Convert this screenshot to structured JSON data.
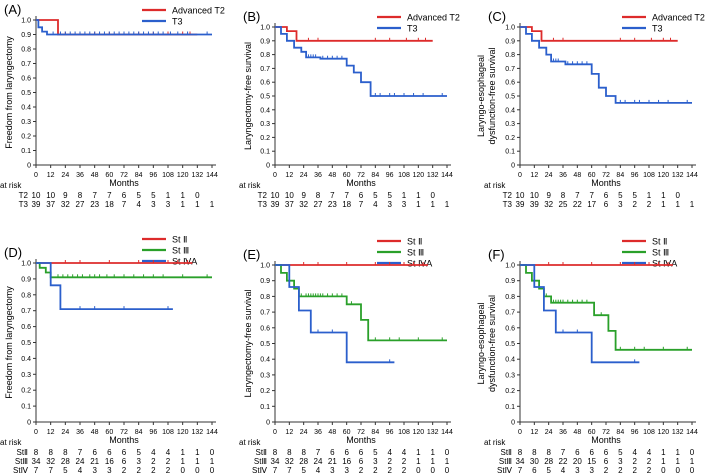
{
  "chart_data": [
    {
      "panel": "(A)",
      "type": "line",
      "title": "",
      "xlabel": "Months",
      "ylabel": "Freedom from laryngectomy",
      "xlim": [
        0,
        144
      ],
      "ylim": [
        0,
        1.0
      ],
      "x_ticks": [
        "0",
        "12",
        "24",
        "36",
        "48",
        "60",
        "72",
        "84",
        "96",
        "108",
        "120",
        "132",
        "144"
      ],
      "y_ticks": [
        "0",
        "0.1",
        "0.2",
        "0.3",
        "0.4",
        "0.5",
        "0.6",
        "0.7",
        "0.8",
        "0.9",
        "1.0"
      ],
      "legend": "top-right",
      "series": [
        {
          "name": "Advanced T2",
          "color": "#dd2b2b",
          "x": [
            0,
            18,
            18,
            132
          ],
          "y": [
            1.0,
            1.0,
            0.9,
            0.9
          ],
          "censor_x": [
            24,
            36,
            48,
            60,
            72,
            84,
            96,
            108,
            120,
            126
          ]
        },
        {
          "name": "T3",
          "color": "#2b5fcc",
          "x": [
            0,
            2,
            2,
            5,
            5,
            9,
            9,
            144
          ],
          "y": [
            1.0,
            1.0,
            0.95,
            0.95,
            0.92,
            0.92,
            0.9,
            0.9
          ],
          "censor_x": [
            14,
            20,
            24,
            28,
            32,
            36,
            40,
            44,
            48,
            52,
            56,
            60,
            64,
            68,
            72,
            76,
            80,
            84,
            88,
            92,
            96,
            100,
            104,
            110,
            116,
            124,
            140
          ]
        }
      ],
      "risk_label": "at risk",
      "risk_rows": [
        {
          "label": "T2",
          "values": [
            "10",
            "10",
            "9",
            "8",
            "7",
            "7",
            "6",
            "5",
            "5",
            "1",
            "1",
            "0"
          ]
        },
        {
          "label": "T3",
          "values": [
            "39",
            "37",
            "32",
            "27",
            "23",
            "18",
            "7",
            "4",
            "3",
            "3",
            "1",
            "1",
            "1"
          ]
        }
      ]
    },
    {
      "panel": "(B)",
      "type": "line",
      "title": "",
      "xlabel": "Months",
      "ylabel": "Laryngectomy‐free survival",
      "xlim": [
        0,
        144
      ],
      "ylim": [
        0,
        1.0
      ],
      "x_ticks": [
        "0",
        "12",
        "24",
        "36",
        "48",
        "60",
        "72",
        "84",
        "96",
        "108",
        "120",
        "132",
        "144"
      ],
      "y_ticks": [
        "0",
        "0.1",
        "0.2",
        "0.3",
        "0.4",
        "0.5",
        "0.6",
        "0.7",
        "0.8",
        "0.9",
        "1.0"
      ],
      "legend": "top-right",
      "series": [
        {
          "name": "Advanced T2",
          "color": "#dd2b2b",
          "x": [
            0,
            10,
            10,
            18,
            18,
            132
          ],
          "y": [
            1.0,
            1.0,
            0.97,
            0.97,
            0.9,
            0.9
          ],
          "censor_x": [
            28,
            36,
            84,
            96,
            110,
            120,
            126
          ]
        },
        {
          "name": "T3",
          "color": "#2b5fcc",
          "x": [
            0,
            5,
            5,
            10,
            10,
            16,
            16,
            22,
            22,
            26,
            26,
            38,
            38,
            60,
            60,
            66,
            66,
            72,
            72,
            80,
            80,
            144
          ],
          "y": [
            1.0,
            1.0,
            0.95,
            0.95,
            0.9,
            0.9,
            0.85,
            0.85,
            0.82,
            0.82,
            0.78,
            0.78,
            0.77,
            0.77,
            0.72,
            0.72,
            0.67,
            0.67,
            0.6,
            0.6,
            0.5,
            0.5
          ],
          "censor_x": [
            28,
            30,
            32,
            34,
            40,
            44,
            48,
            52,
            56,
            84,
            88,
            96,
            100,
            108,
            116,
            124,
            140
          ]
        }
      ],
      "risk_label": "at risk",
      "risk_rows": [
        {
          "label": "T2",
          "values": [
            "10",
            "10",
            "9",
            "8",
            "7",
            "7",
            "6",
            "5",
            "5",
            "1",
            "1",
            "0"
          ]
        },
        {
          "label": "T3",
          "values": [
            "39",
            "37",
            "32",
            "27",
            "23",
            "18",
            "7",
            "4",
            "3",
            "3",
            "1",
            "1",
            "1"
          ]
        }
      ]
    },
    {
      "panel": "(C)",
      "type": "line",
      "title": "",
      "xlabel": "Months",
      "ylabel": "Laryngo‐esophageal dysfunction‐free survival",
      "xlim": [
        0,
        144
      ],
      "ylim": [
        0,
        1.0
      ],
      "x_ticks": [
        "0",
        "12",
        "24",
        "36",
        "48",
        "60",
        "72",
        "84",
        "96",
        "108",
        "120",
        "132",
        "144"
      ],
      "y_ticks": [
        "0",
        "0.1",
        "0.2",
        "0.3",
        "0.4",
        "0.5",
        "0.6",
        "0.7",
        "0.8",
        "0.9",
        "1.0"
      ],
      "legend": "top-right",
      "series": [
        {
          "name": "Advanced T2",
          "color": "#dd2b2b",
          "x": [
            0,
            10,
            10,
            18,
            18,
            132
          ],
          "y": [
            1.0,
            1.0,
            0.97,
            0.97,
            0.9,
            0.9
          ],
          "censor_x": [
            28,
            36,
            84,
            96,
            110,
            120,
            126
          ]
        },
        {
          "name": "T3",
          "color": "#2b5fcc",
          "x": [
            0,
            5,
            5,
            10,
            10,
            16,
            16,
            22,
            22,
            26,
            26,
            38,
            38,
            60,
            60,
            66,
            66,
            72,
            72,
            80,
            80,
            144
          ],
          "y": [
            1.0,
            1.0,
            0.95,
            0.95,
            0.9,
            0.9,
            0.85,
            0.85,
            0.8,
            0.8,
            0.75,
            0.75,
            0.73,
            0.73,
            0.66,
            0.66,
            0.56,
            0.56,
            0.5,
            0.5,
            0.45,
            0.45
          ],
          "censor_x": [
            28,
            30,
            32,
            40,
            44,
            48,
            52,
            56,
            84,
            88,
            96,
            100,
            108,
            116,
            124,
            140
          ]
        }
      ],
      "risk_label": "at risk",
      "risk_rows": [
        {
          "label": "T2",
          "values": [
            "10",
            "10",
            "9",
            "8",
            "7",
            "7",
            "6",
            "5",
            "5",
            "1",
            "1",
            "0"
          ]
        },
        {
          "label": "T3",
          "values": [
            "39",
            "39",
            "32",
            "25",
            "22",
            "17",
            "6",
            "3",
            "2",
            "2",
            "1",
            "1",
            "1"
          ]
        }
      ]
    },
    {
      "panel": "(D)",
      "type": "line",
      "title": "",
      "xlabel": "Months",
      "ylabel": "Freedom from laryngectomy",
      "xlim": [
        0,
        144
      ],
      "ylim": [
        0,
        1.0
      ],
      "x_ticks": [
        "0",
        "12",
        "24",
        "36",
        "48",
        "60",
        "72",
        "84",
        "96",
        "108",
        "120",
        "132",
        "144"
      ],
      "y_ticks": [
        "0",
        "0.1",
        "0.2",
        "0.3",
        "0.4",
        "0.5",
        "0.6",
        "0.7",
        "0.8",
        "0.9",
        "1.0"
      ],
      "legend": "top-right",
      "series": [
        {
          "name": "St Ⅱ",
          "color": "#dd2b2b",
          "x": [
            0,
            128
          ],
          "y": [
            1.0,
            1.0
          ],
          "censor_x": [
            24,
            36,
            60,
            84,
            96,
            108,
            116,
            124
          ]
        },
        {
          "name": "St Ⅲ",
          "color": "#2aa02a",
          "x": [
            0,
            3,
            3,
            8,
            8,
            12,
            12,
            144
          ],
          "y": [
            1.0,
            1.0,
            0.97,
            0.97,
            0.94,
            0.94,
            0.91,
            0.91
          ],
          "censor_x": [
            18,
            22,
            26,
            30,
            34,
            38,
            44,
            48,
            52,
            58,
            64,
            72,
            80,
            88,
            96,
            104,
            120,
            140
          ]
        },
        {
          "name": "St ⅣA",
          "color": "#2b5fcc",
          "x": [
            0,
            12,
            12,
            20,
            20,
            112
          ],
          "y": [
            1.0,
            1.0,
            0.86,
            0.86,
            0.71,
            0.71
          ],
          "censor_x": [
            36,
            48,
            72,
            108
          ]
        }
      ],
      "risk_label": "at risk",
      "risk_rows": [
        {
          "label": "StⅡ",
          "values": [
            "8",
            "8",
            "8",
            "7",
            "6",
            "6",
            "6",
            "5",
            "4",
            "4",
            "1",
            "1",
            "0"
          ]
        },
        {
          "label": "StⅢ",
          "values": [
            "34",
            "32",
            "28",
            "24",
            "21",
            "16",
            "6",
            "3",
            "2",
            "2",
            "1",
            "1",
            "1"
          ]
        },
        {
          "label": "StⅣ",
          "values": [
            "7",
            "7",
            "5",
            "4",
            "3",
            "3",
            "2",
            "2",
            "2",
            "2",
            "0",
            "0",
            "0"
          ]
        }
      ]
    },
    {
      "panel": "(E)",
      "type": "line",
      "title": "",
      "xlabel": "Months",
      "ylabel": "Laryngectomy‐free survival",
      "xlim": [
        0,
        144
      ],
      "ylim": [
        0,
        1.0
      ],
      "x_ticks": [
        "0",
        "12",
        "24",
        "36",
        "48",
        "60",
        "72",
        "84",
        "96",
        "108",
        "120",
        "132",
        "144"
      ],
      "y_ticks": [
        "0",
        "0.1",
        "0.2",
        "0.3",
        "0.4",
        "0.5",
        "0.6",
        "0.7",
        "0.8",
        "0.9",
        "1.0"
      ],
      "legend": "top-right",
      "series": [
        {
          "name": "St Ⅱ",
          "color": "#dd2b2b",
          "x": [
            0,
            128
          ],
          "y": [
            1.0,
            1.0
          ],
          "censor_x": [
            24,
            36,
            60,
            84,
            96,
            108,
            116,
            124
          ]
        },
        {
          "name": "St Ⅲ",
          "color": "#2aa02a",
          "x": [
            0,
            5,
            5,
            10,
            10,
            16,
            16,
            20,
            20,
            60,
            60,
            72,
            72,
            78,
            78,
            144
          ],
          "y": [
            1.0,
            1.0,
            0.95,
            0.95,
            0.9,
            0.9,
            0.85,
            0.85,
            0.8,
            0.8,
            0.75,
            0.75,
            0.65,
            0.65,
            0.52,
            0.52
          ],
          "censor_x": [
            22,
            26,
            28,
            30,
            32,
            34,
            36,
            38,
            40,
            44,
            48,
            52,
            56,
            64,
            84,
            96,
            104,
            120,
            140
          ]
        },
        {
          "name": "St ⅣA",
          "color": "#2b5fcc",
          "x": [
            0,
            12,
            12,
            20,
            20,
            30,
            30,
            60,
            60,
            100
          ],
          "y": [
            1.0,
            1.0,
            0.86,
            0.86,
            0.71,
            0.71,
            0.57,
            0.57,
            0.38,
            0.38
          ],
          "censor_x": [
            36,
            48,
            96
          ]
        }
      ],
      "risk_label": "at risk",
      "risk_rows": [
        {
          "label": "StⅡ",
          "values": [
            "8",
            "8",
            "8",
            "7",
            "6",
            "6",
            "6",
            "5",
            "4",
            "4",
            "1",
            "1",
            "0"
          ]
        },
        {
          "label": "StⅢ",
          "values": [
            "34",
            "32",
            "28",
            "24",
            "21",
            "16",
            "6",
            "3",
            "2",
            "2",
            "1",
            "1",
            "1"
          ]
        },
        {
          "label": "StⅣ",
          "values": [
            "7",
            "7",
            "5",
            "4",
            "3",
            "3",
            "2",
            "2",
            "2",
            "2",
            "0",
            "0",
            "0"
          ]
        }
      ]
    },
    {
      "panel": "(F)",
      "type": "line",
      "title": "",
      "xlabel": "Months",
      "ylabel": "Laryngo‐esophageal dysfunction‐free survival",
      "xlim": [
        0,
        144
      ],
      "ylim": [
        0,
        1.0
      ],
      "x_ticks": [
        "0",
        "12",
        "24",
        "36",
        "48",
        "60",
        "72",
        "84",
        "96",
        "108",
        "120",
        "132",
        "144"
      ],
      "y_ticks": [
        "0",
        "0.1",
        "0.2",
        "0.3",
        "0.4",
        "0.5",
        "0.6",
        "0.7",
        "0.8",
        "0.9",
        "1.0"
      ],
      "legend": "top-right",
      "series": [
        {
          "name": "St Ⅱ",
          "color": "#dd2b2b",
          "x": [
            0,
            128
          ],
          "y": [
            1.0,
            1.0
          ],
          "censor_x": [
            24,
            36,
            60,
            84,
            96,
            108,
            116,
            124
          ]
        },
        {
          "name": "St Ⅲ",
          "color": "#2aa02a",
          "x": [
            0,
            5,
            5,
            10,
            10,
            16,
            16,
            20,
            20,
            26,
            26,
            62,
            62,
            74,
            74,
            80,
            80,
            144
          ],
          "y": [
            1.0,
            1.0,
            0.95,
            0.95,
            0.9,
            0.9,
            0.85,
            0.85,
            0.8,
            0.8,
            0.76,
            0.76,
            0.68,
            0.68,
            0.58,
            0.58,
            0.46,
            0.46
          ],
          "censor_x": [
            22,
            28,
            30,
            32,
            34,
            36,
            40,
            44,
            48,
            52,
            56,
            68,
            84,
            96,
            104,
            120,
            140
          ]
        },
        {
          "name": "St ⅣA",
          "color": "#2b5fcc",
          "x": [
            0,
            12,
            12,
            20,
            20,
            30,
            30,
            60,
            60,
            100
          ],
          "y": [
            1.0,
            1.0,
            0.86,
            0.86,
            0.71,
            0.71,
            0.57,
            0.57,
            0.38,
            0.38
          ],
          "censor_x": [
            36,
            48,
            96
          ]
        }
      ],
      "risk_label": "at risk",
      "risk_rows": [
        {
          "label": "StⅡ",
          "values": [
            "8",
            "8",
            "8",
            "7",
            "6",
            "6",
            "6",
            "5",
            "4",
            "4",
            "1",
            "1",
            "0"
          ]
        },
        {
          "label": "StⅢ",
          "values": [
            "34",
            "30",
            "28",
            "22",
            "20",
            "15",
            "6",
            "3",
            "2",
            "2",
            "1",
            "1",
            "1"
          ]
        },
        {
          "label": "StⅣ",
          "values": [
            "7",
            "6",
            "5",
            "4",
            "3",
            "3",
            "2",
            "2",
            "2",
            "2",
            "0",
            "0",
            "0"
          ]
        }
      ]
    }
  ]
}
